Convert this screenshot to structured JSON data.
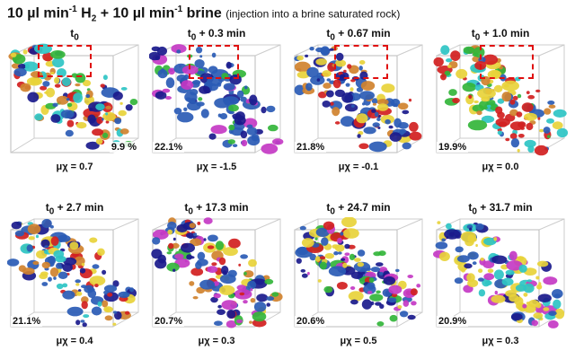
{
  "header": {
    "title_main": "10 µl min",
    "title_sup1": "-1",
    "title_h": " H",
    "title_sub2": "2",
    "title_mid": " + 10 µl min",
    "title_sup2": "-1",
    "title_end": " brine",
    "subtitle": "(injection into a brine saturated rock)"
  },
  "panels": [
    {
      "t0": "t",
      "t0sub": "0",
      "time": "",
      "saturation": "9.9 %",
      "mu_label": "μχ",
      "mu_value": "= 0.7"
    },
    {
      "t0": "t",
      "t0sub": "0",
      "time": "+ 0.3 min",
      "saturation": "22.1%",
      "mu_label": "μχ",
      "mu_value": "= -1.5"
    },
    {
      "t0": "t",
      "t0sub": "0",
      "time": "+ 0.67 min",
      "saturation": "21.8%",
      "mu_label": "μχ",
      "mu_value": "= -0.1"
    },
    {
      "t0": "t",
      "t0sub": "0",
      "time": "+ 1.0 min",
      "saturation": "19.9%",
      "mu_label": "μχ",
      "mu_value": "= 0.0"
    },
    {
      "t0": "t",
      "t0sub": "0",
      "time": "+ 2.7 min",
      "saturation": "21.1%",
      "mu_label": "μχ",
      "mu_value": "= 0.4"
    },
    {
      "t0": "t",
      "t0sub": "0",
      "time": "+ 17.3 min",
      "saturation": "20.7%",
      "mu_label": "μχ",
      "mu_value": "= 0.3"
    },
    {
      "t0": "t",
      "t0sub": "0",
      "time": "+ 24.7 min",
      "saturation": "20.6%",
      "mu_label": "μχ",
      "mu_value": "= 0.5"
    },
    {
      "t0": "t",
      "t0sub": "0",
      "time": "+ 31.7 min",
      "saturation": "20.9%",
      "mu_label": "μχ",
      "mu_value": "= 0.3"
    }
  ],
  "colors": {
    "zoom_box": "#e01010",
    "blue": "#2a5bb5",
    "red": "#d11f1f",
    "yellow": "#e8d23a",
    "orange": "#d0822e",
    "magenta": "#c43ac4",
    "cyan": "#2ec4c4",
    "green": "#33b53a",
    "navy": "#1a1a8c"
  }
}
